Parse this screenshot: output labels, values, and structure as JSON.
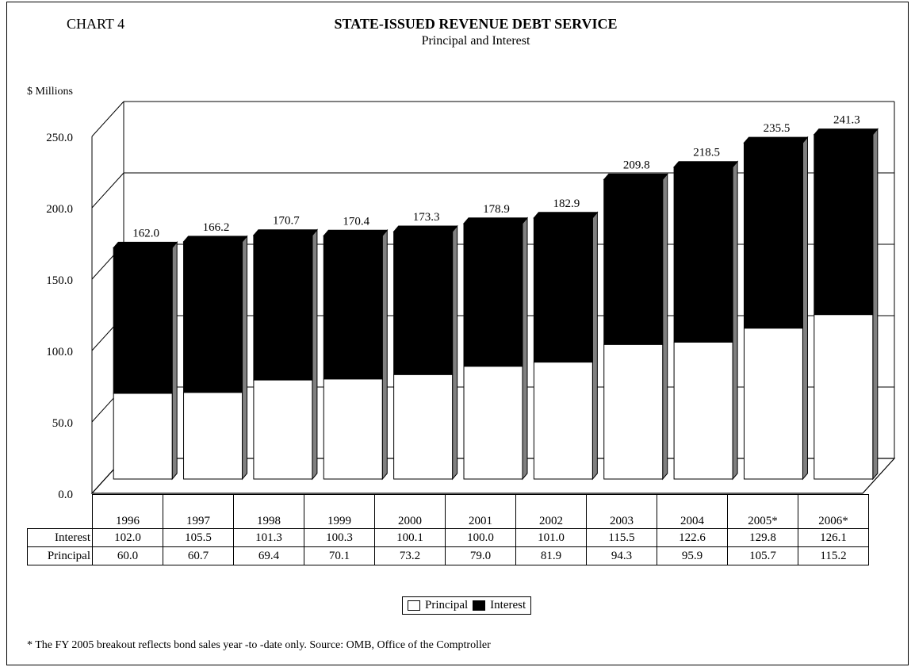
{
  "chart_label": "CHART 4",
  "legend": {
    "principal": "Principal",
    "interest": "Interest"
  },
  "footnote": "* The FY 2005 breakout reflects bond sales year -to -date only. Source: OMB, Office of the Comptroller",
  "table": {
    "row_interest": "Interest",
    "row_principal": "Principal"
  },
  "colors": {
    "principal": "#ffffff",
    "interest": "#000000",
    "side": "#808080"
  },
  "chart_data": {
    "type": "bar",
    "stacked": true,
    "three_d": true,
    "title": "STATE-ISSUED REVENUE DEBT SERVICE",
    "subtitle": "Principal and Interest",
    "ylabel": "$ Millions",
    "ylim": [
      0,
      250
    ],
    "yticks": [
      "0.0",
      "50.0",
      "100.0",
      "150.0",
      "200.0",
      "250.0"
    ],
    "grid": true,
    "legend_position": "bottom",
    "categories": [
      "1996",
      "1997",
      "1998",
      "1999",
      "2000",
      "2001",
      "2002",
      "2003",
      "2004",
      "2005*",
      "2006*"
    ],
    "series": [
      {
        "name": "Principal",
        "values": [
          60.0,
          60.7,
          69.4,
          70.1,
          73.2,
          79.0,
          81.9,
          94.3,
          95.9,
          105.7,
          115.2
        ]
      },
      {
        "name": "Interest",
        "values": [
          102.0,
          105.5,
          101.3,
          100.3,
          100.1,
          100.0,
          101.0,
          115.5,
          122.6,
          129.8,
          126.1
        ]
      }
    ],
    "totals": [
      "162.0",
      "166.2",
      "170.7",
      "170.4",
      "173.3",
      "178.9",
      "182.9",
      "209.8",
      "218.5",
      "235.5",
      "241.3"
    ],
    "principal_labels": [
      "60.0",
      "60.7",
      "69.4",
      "70.1",
      "73.2",
      "79.0",
      "81.9",
      "94.3",
      "95.9",
      "105.7",
      "115.2"
    ],
    "interest_labels": [
      "102.0",
      "105.5",
      "101.3",
      "100.3",
      "100.1",
      "100.0",
      "101.0",
      "115.5",
      "122.6",
      "129.8",
      "126.1"
    ]
  }
}
